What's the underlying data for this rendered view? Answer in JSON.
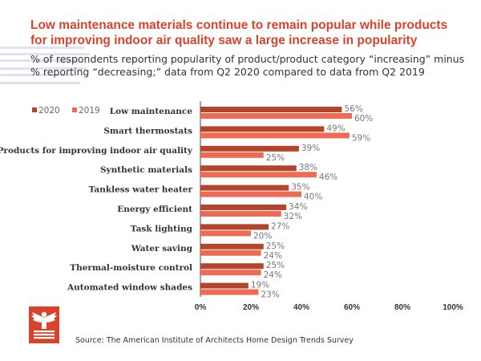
{
  "chart_data": {
    "type": "bar",
    "orientation": "horizontal",
    "title": "Low maintenance materials continue to remain popular while products for improving indoor air quality saw a large increase in popularity",
    "subtitle": "% of respondents reporting popularity of product/product category “increasing” minus % reporting “decreasing;” data from Q2 2020 compared to data from Q2 2019",
    "categories": [
      "Low maintenance",
      "Smart thermostats",
      "Products for improving indoor air quality",
      "Synthetic materials",
      "Tankless water heater",
      "Energy efficient",
      "Task lighting",
      "Water saving",
      "Thermal-moisture control",
      "Automated window shades"
    ],
    "series": [
      {
        "name": "2020",
        "color": "#b5442d",
        "values": [
          56,
          49,
          39,
          38,
          35,
          34,
          27,
          25,
          25,
          19
        ]
      },
      {
        "name": "2019",
        "color": "#ee6a53",
        "values": [
          60,
          59,
          25,
          46,
          40,
          32,
          20,
          24,
          24,
          23
        ]
      }
    ],
    "xlim": [
      0,
      100
    ],
    "xticks": [
      "0%",
      "20%",
      "40%",
      "60%",
      "80%",
      "100%"
    ],
    "value_suffix": "%",
    "legend_position": "top-left",
    "grid": false
  },
  "source": "Source: The American Institute of Architects Home Design Trends Survey",
  "logo_icon": "aia-eagle-logo-icon"
}
